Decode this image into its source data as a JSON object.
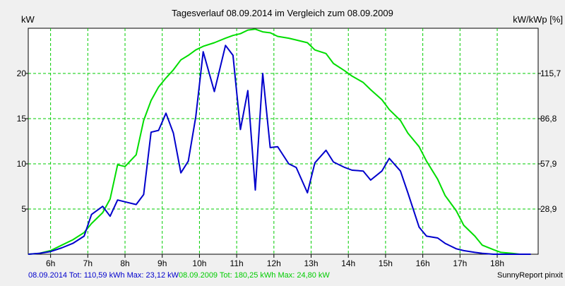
{
  "chart_data": {
    "type": "line",
    "title": "Tagesverlauf 08.09.2014 im Vergleich zum 08.09.2009",
    "ylabel_left": "kW",
    "ylabel_right": "kW/kWp [%]",
    "xlim": [
      5.4,
      19.1
    ],
    "ylim": [
      0,
      25
    ],
    "x_ticks": [
      6,
      7,
      8,
      9,
      10,
      11,
      12,
      13,
      14,
      15,
      16,
      17,
      18
    ],
    "x_tick_labels": [
      "6h",
      "7h",
      "8h",
      "9h",
      "10h",
      "11h",
      "12h",
      "13h",
      "14h",
      "15h",
      "16h",
      "17h",
      "18h"
    ],
    "y_ticks": [
      5,
      10,
      15,
      20
    ],
    "y_tick_labels": [
      "5",
      "10",
      "15",
      "20"
    ],
    "y2_ticks": [
      5,
      10,
      15,
      20
    ],
    "y2_tick_labels": [
      "28,9",
      "57,9",
      "86,8",
      "115,7"
    ],
    "grid": true,
    "colors": {
      "series_2014": "#0000cc",
      "series_2009": "#00dd00",
      "grid": "#00cc00",
      "background": "#ffffff",
      "frame": "#f0f0f0"
    },
    "series": [
      {
        "key": "2014",
        "color": "#0000cc",
        "x": [
          5.4,
          5.7,
          6.0,
          6.3,
          6.6,
          6.9,
          7.1,
          7.4,
          7.6,
          7.8,
          8.0,
          8.3,
          8.5,
          8.7,
          8.9,
          9.1,
          9.3,
          9.5,
          9.7,
          9.9,
          10.1,
          10.4,
          10.7,
          10.9,
          11.1,
          11.3,
          11.5,
          11.7,
          11.9,
          12.1,
          12.4,
          12.6,
          12.9,
          13.1,
          13.4,
          13.6,
          13.9,
          14.1,
          14.4,
          14.6,
          14.9,
          15.1,
          15.4,
          15.6,
          15.9,
          16.1,
          16.4,
          16.6,
          16.9,
          17.1,
          17.4,
          17.6,
          17.9,
          18.1,
          18.4,
          18.6,
          18.9
        ],
        "values": [
          0.0,
          0.1,
          0.3,
          0.7,
          1.2,
          2.0,
          4.4,
          5.3,
          4.2,
          6.0,
          5.8,
          5.5,
          6.6,
          13.5,
          13.7,
          15.6,
          13.4,
          9.0,
          10.3,
          15.2,
          22.4,
          18.0,
          23.1,
          22.0,
          13.8,
          18.1,
          7.1,
          20.0,
          11.8,
          11.9,
          10.0,
          9.6,
          6.8,
          10.1,
          11.5,
          10.2,
          9.6,
          9.3,
          9.2,
          8.2,
          9.2,
          10.6,
          9.2,
          6.8,
          3.0,
          2.0,
          1.8,
          1.2,
          0.6,
          0.4,
          0.2,
          0.1,
          0.0,
          0.0,
          0.0,
          0.0,
          0.0
        ]
      },
      {
        "key": "2009",
        "color": "#00dd00",
        "x": [
          5.4,
          5.7,
          6.0,
          6.3,
          6.6,
          6.9,
          7.1,
          7.4,
          7.6,
          7.8,
          8.0,
          8.3,
          8.5,
          8.7,
          8.9,
          9.1,
          9.3,
          9.5,
          9.7,
          9.9,
          10.1,
          10.4,
          10.7,
          10.9,
          11.1,
          11.3,
          11.5,
          11.7,
          11.9,
          12.1,
          12.4,
          12.6,
          12.9,
          13.1,
          13.4,
          13.6,
          13.9,
          14.1,
          14.4,
          14.6,
          14.9,
          15.1,
          15.4,
          15.6,
          15.9,
          16.1,
          16.4,
          16.6,
          16.9,
          17.1,
          17.4,
          17.6,
          17.9,
          18.1,
          18.4,
          18.6,
          18.9
        ],
        "values": [
          0.0,
          0.1,
          0.4,
          1.0,
          1.6,
          2.4,
          3.4,
          4.6,
          6.1,
          9.9,
          9.7,
          11.0,
          14.8,
          17.0,
          18.5,
          19.5,
          20.4,
          21.5,
          22.0,
          22.6,
          23.0,
          23.4,
          23.9,
          24.2,
          24.4,
          24.8,
          24.9,
          24.6,
          24.5,
          24.1,
          23.9,
          23.7,
          23.4,
          22.6,
          22.2,
          21.1,
          20.3,
          19.7,
          19.0,
          18.2,
          17.1,
          16.0,
          14.8,
          13.4,
          11.9,
          10.3,
          8.3,
          6.5,
          4.8,
          3.2,
          2.0,
          1.0,
          0.5,
          0.2,
          0.1,
          0.0,
          0.0
        ]
      }
    ],
    "footer": {
      "left_2014": "08.09.2014 Tot: 110,59 kWh Max: 23,12 kW",
      "left_2009": "08.09.2009 Tot: 180,25 kWh Max: 24,80 kW",
      "right": "SunnyReport pinxit"
    }
  }
}
